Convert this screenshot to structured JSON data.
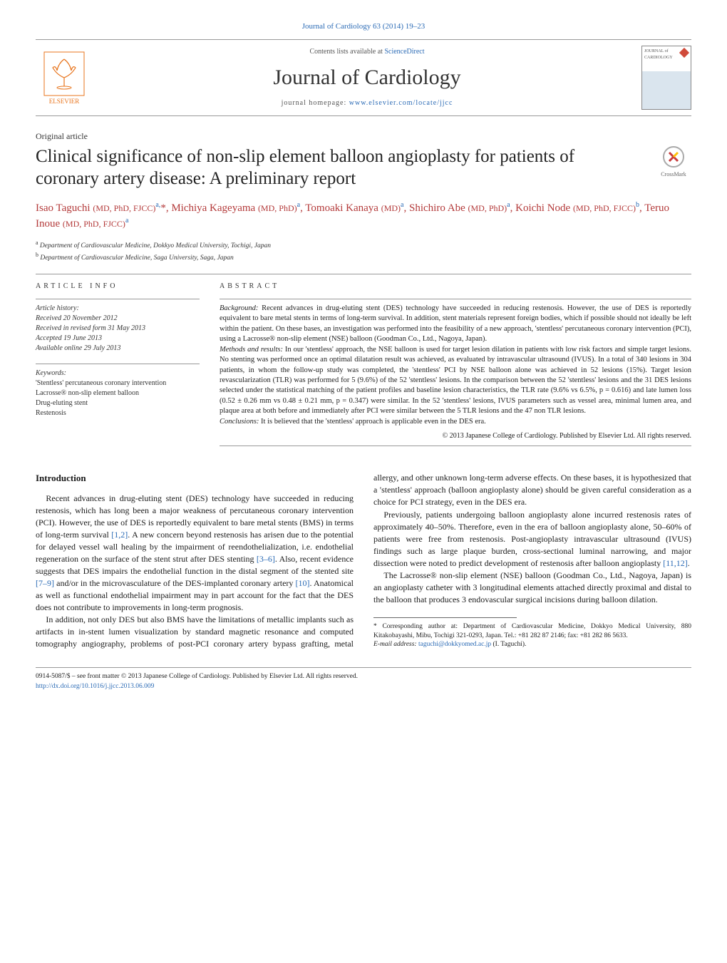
{
  "citation": "Journal of Cardiology 63 (2014) 19–23",
  "header": {
    "contents_prefix": "Contents lists available at ",
    "contents_link": "ScienceDirect",
    "journal_name": "Journal of Cardiology",
    "homepage_prefix": "journal homepage: ",
    "homepage_link": "www.elsevier.com/locate/jjcc",
    "publisher": "ELSEVIER",
    "cover_text_1": "JOURNAL of",
    "cover_text_2": "CARDIOLOGY"
  },
  "article_type": "Original article",
  "title": "Clinical significance of non-slip element balloon angioplasty for patients of coronary artery disease: A preliminary report",
  "crossmark": "CrossMark",
  "authors_html": "Isao Taguchi <span class='cred'>(MD, PhD, FJCC)</span><sup>a,</sup>*, Michiya Kageyama <span class='cred'>(MD, PhD)</span><sup>a</sup>, Tomoaki Kanaya <span class='cred'>(MD)</span><sup>a</sup>, Shichiro Abe <span class='cred'>(MD, PhD)</span><sup>a</sup>, Koichi Node <span class='cred'>(MD, PhD, FJCC)</span><sup>b</sup>, Teruo Inoue <span class='cred'>(MD, PhD, FJCC)</span><sup>a</sup>",
  "affiliations": [
    {
      "marker": "a",
      "text": "Department of Cardiovascular Medicine, Dokkyo Medical University, Tochigi, Japan"
    },
    {
      "marker": "b",
      "text": "Department of Cardiovascular Medicine, Saga University, Saga, Japan"
    }
  ],
  "info": {
    "heading": "ARTICLE INFO",
    "history_label": "Article history:",
    "history": [
      "Received 20 November 2012",
      "Received in revised form 31 May 2013",
      "Accepted 19 June 2013",
      "Available online 29 July 2013"
    ],
    "keywords_label": "Keywords:",
    "keywords": [
      "'Stentless' percutaneous coronary intervention",
      "Lacrosse® non-slip element balloon",
      "Drug-eluting stent",
      "Restenosis"
    ]
  },
  "abstract": {
    "heading": "ABSTRACT",
    "background_label": "Background:",
    "background": "Recent advances in drug-eluting stent (DES) technology have succeeded in reducing restenosis. However, the use of DES is reportedly equivalent to bare metal stents in terms of long-term survival. In addition, stent materials represent foreign bodies, which if possible should not ideally be left within the patient. On these bases, an investigation was performed into the feasibility of a new approach, 'stentless' percutaneous coronary intervention (PCI), using a Lacrosse® non-slip element (NSE) balloon (Goodman Co., Ltd., Nagoya, Japan).",
    "methods_label": "Methods and results:",
    "methods": "In our 'stentless' approach, the NSE balloon is used for target lesion dilation in patients with low risk factors and simple target lesions. No stenting was performed once an optimal dilatation result was achieved, as evaluated by intravascular ultrasound (IVUS). In a total of 340 lesions in 304 patients, in whom the follow-up study was completed, the 'stentless' PCI by NSE balloon alone was achieved in 52 lesions (15%). Target lesion revascularization (TLR) was performed for 5 (9.6%) of the 52 'stentless' lesions. In the comparison between the 52 'stentless' lesions and the 31 DES lesions selected under the statistical matching of the patient profiles and baseline lesion characteristics, the TLR rate (9.6% vs 6.5%, p = 0.616) and late lumen loss (0.52 ± 0.26 mm vs 0.48 ± 0.21 mm, p = 0.347) were similar. In the 52 'stentless' lesions, IVUS parameters such as vessel area, minimal lumen area, and plaque area at both before and immediately after PCI were similar between the 5 TLR lesions and the 47 non TLR lesions.",
    "conclusions_label": "Conclusions:",
    "conclusions": "It is believed that the 'stentless' approach is applicable even in the DES era.",
    "copyright": "© 2013 Japanese College of Cardiology. Published by Elsevier Ltd. All rights reserved."
  },
  "body": {
    "intro_heading": "Introduction",
    "p1_a": "Recent advances in drug-eluting stent (DES) technology have succeeded in reducing restenosis, which has long been a major weakness of percutaneous coronary intervention (PCI). However, the use of DES is reportedly equivalent to bare metal stents (BMS) in terms of long-term survival ",
    "ref1": "[1,2]",
    "p1_b": ". A new concern beyond restenosis has arisen due to the potential for delayed vessel wall healing by the impairment of reendothelialization, i.e. endothelial regeneration on the surface of the stent strut after DES stenting ",
    "ref2": "[3–6]",
    "p1_c": ". Also, recent evidence suggests that DES impairs the endothelial function in the distal segment of the stented site ",
    "ref3": "[7–9]",
    "p1_d": " and/or in the microvasculature of the DES-implanted coronary artery ",
    "ref4": "[10]",
    "p1_e": ". Anatomical as well as functional endothelial impairment may in part account for the fact that the DES does not contribute to improvements in long-term prognosis.",
    "p2": "In addition, not only DES but also BMS have the limitations of metallic implants such as artifacts in in-stent lumen visualization by standard magnetic resonance and computed tomography angiography, problems of post-PCI coronary artery bypass grafting, metal allergy, and other unknown long-term adverse effects. On these bases, it is hypothesized that a 'stentless' approach (balloon angioplasty alone) should be given careful consideration as a choice for PCI strategy, even in the DES era.",
    "p3_a": "Previously, patients undergoing balloon angioplasty alone incurred restenosis rates of approximately 40–50%. Therefore, even in the era of balloon angioplasty alone, 50–60% of patients were free from restenosis. Post-angioplasty intravascular ultrasound (IVUS) findings such as large plaque burden, cross-sectional luminal narrowing, and major dissection were noted to predict development of restenosis after balloon angioplasty ",
    "ref5": "[11,12]",
    "p3_b": ".",
    "p4": "The Lacrosse® non-slip element (NSE) balloon (Goodman Co., Ltd., Nagoya, Japan) is an angioplasty catheter with 3 longitudinal elements attached directly proximal and distal to the balloon that produces 3 endovascular surgical incisions during balloon dilation."
  },
  "footnotes": {
    "corresponding": "* Corresponding author at: Department of Cardiovascular Medicine, Dokkyo Medical University, 880 Kitakobayashi, Mibu, Tochigi 321-0293, Japan. Tel.: +81 282 87 2146; fax: +81 282 86 5633.",
    "email_label": "E-mail address: ",
    "email": "taguchi@dokkyomed.ac.jp",
    "email_suffix": " (I. Taguchi)."
  },
  "bottom": {
    "issn_line": "0914-5087/$ – see front matter © 2013 Japanese College of Cardiology. Published by Elsevier Ltd. All rights reserved.",
    "doi": "http://dx.doi.org/10.1016/j.jjcc.2013.06.009"
  },
  "colors": {
    "link": "#2a6ab5",
    "author": "#b33939",
    "elsevier": "#e8741c"
  }
}
